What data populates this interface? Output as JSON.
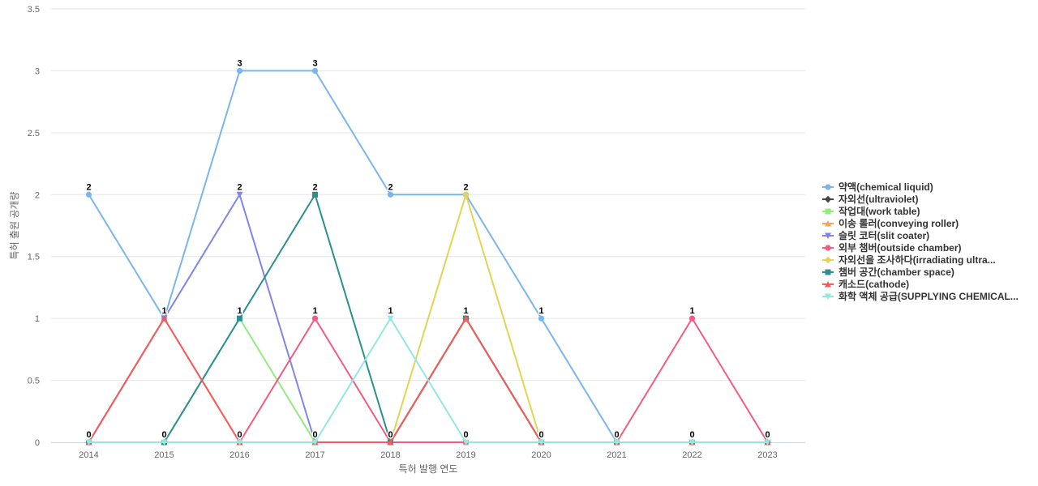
{
  "chart_data": {
    "type": "line",
    "title": "",
    "xlabel": "특허 발행 연도",
    "ylabel": "특허 출원 공개량",
    "ylim": [
      0,
      3.5
    ],
    "y_ticks": [
      "0",
      "0.5",
      "1",
      "1.5",
      "2",
      "2.5",
      "3",
      "3.5"
    ],
    "categories": [
      "2014",
      "2015",
      "2016",
      "2017",
      "2018",
      "2019",
      "2020",
      "2021",
      "2022",
      "2023"
    ],
    "grid": true,
    "legend_position": "right",
    "series": [
      {
        "name": "약액(chemical liquid)",
        "color": "#7cb5ec",
        "marker": "circle",
        "values": [
          2,
          1,
          3,
          3,
          2,
          2,
          1,
          0,
          0,
          0
        ],
        "labeled": true
      },
      {
        "name": "자외선(ultraviolet)",
        "color": "#434348",
        "marker": "diamond",
        "values": [
          0,
          0,
          0,
          0,
          0,
          1,
          0,
          0,
          0,
          0
        ],
        "labeled": false
      },
      {
        "name": "작업대(work table)",
        "color": "#90ed7d",
        "marker": "square",
        "values": [
          0,
          0,
          1,
          0,
          0,
          0,
          0,
          0,
          0,
          0
        ],
        "labeled": false
      },
      {
        "name": "이송 롤러(conveying roller)",
        "color": "#f7a35c",
        "marker": "triangle",
        "values": [
          0,
          1,
          0,
          0,
          0,
          1,
          0,
          0,
          0,
          0
        ],
        "labeled": false
      },
      {
        "name": "슬릿 코터(slit coater)",
        "color": "#8085e9",
        "marker": "triangle-down",
        "values": [
          0,
          1,
          2,
          0,
          0,
          0,
          0,
          0,
          0,
          0
        ],
        "labeled": false
      },
      {
        "name": "외부 챔버(outside chamber)",
        "color": "#f15c80",
        "marker": "circle",
        "values": [
          0,
          0,
          0,
          1,
          0,
          0,
          0,
          0,
          1,
          0
        ],
        "labeled": false
      },
      {
        "name": "자외선을 조사하다(irradiating ultra...",
        "color": "#e4d354",
        "marker": "diamond",
        "values": [
          0,
          0,
          0,
          0,
          0,
          2,
          0,
          0,
          0,
          0
        ],
        "labeled": false
      },
      {
        "name": "챔버 공간(chamber space)",
        "color": "#2b908f",
        "marker": "square",
        "values": [
          0,
          0,
          1,
          2,
          0,
          1,
          0,
          0,
          0,
          0
        ],
        "labeled": false
      },
      {
        "name": "캐소드(cathode)",
        "color": "#f45b5b",
        "marker": "triangle",
        "values": [
          0,
          1,
          0,
          0,
          0,
          1,
          0,
          0,
          0,
          0
        ],
        "labeled": false
      },
      {
        "name": "화학 액체 공급(SUPPLYING CHEMICAL...",
        "color": "#91e8e1",
        "marker": "triangle-down",
        "values": [
          0,
          0,
          0,
          0,
          1,
          0,
          0,
          0,
          0,
          0
        ],
        "labeled": false
      }
    ],
    "data_labels": [
      {
        "category": "2014",
        "value": 2,
        "text": "2"
      },
      {
        "category": "2014",
        "value": 0,
        "text": "0"
      },
      {
        "category": "2015",
        "value": 1,
        "text": "1"
      },
      {
        "category": "2015",
        "value": 0,
        "text": "0"
      },
      {
        "category": "2016",
        "value": 3,
        "text": "3"
      },
      {
        "category": "2016",
        "value": 2,
        "text": "2"
      },
      {
        "category": "2016",
        "value": 1,
        "text": "1"
      },
      {
        "category": "2016",
        "value": 0,
        "text": "0"
      },
      {
        "category": "2017",
        "value": 3,
        "text": "3"
      },
      {
        "category": "2017",
        "value": 2,
        "text": "2"
      },
      {
        "category": "2017",
        "value": 1,
        "text": "1"
      },
      {
        "category": "2017",
        "value": 0,
        "text": "0"
      },
      {
        "category": "2018",
        "value": 2,
        "text": "2"
      },
      {
        "category": "2018",
        "value": 1,
        "text": "1"
      },
      {
        "category": "2018",
        "value": 0,
        "text": "0"
      },
      {
        "category": "2019",
        "value": 2,
        "text": "2"
      },
      {
        "category": "2019",
        "value": 1,
        "text": "1"
      },
      {
        "category": "2019",
        "value": 0,
        "text": "0"
      },
      {
        "category": "2020",
        "value": 1,
        "text": "1"
      },
      {
        "category": "2020",
        "value": 0,
        "text": "0"
      },
      {
        "category": "2021",
        "value": 0,
        "text": "0"
      },
      {
        "category": "2022",
        "value": 1,
        "text": "1"
      },
      {
        "category": "2022",
        "value": 0,
        "text": "0"
      },
      {
        "category": "2023",
        "value": 0,
        "text": "0"
      }
    ]
  }
}
